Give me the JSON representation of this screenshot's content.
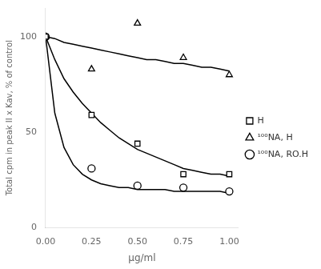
{
  "chart_data": {
    "type": "scatter",
    "xlabel": "μg/ml",
    "ylabel": "Total cpm in peak II x Kav, % of control",
    "xlim": [
      0.0,
      1.05
    ],
    "ylim": [
      0,
      115
    ],
    "xticks": [
      {
        "value": 0.0,
        "label": "0.00"
      },
      {
        "value": 0.25,
        "label": "0.25"
      },
      {
        "value": 0.5,
        "label": "0.50"
      },
      {
        "value": 0.75,
        "label": "0.75"
      },
      {
        "value": 1.0,
        "label": "1.00"
      }
    ],
    "yticks": [
      0,
      50,
      100
    ],
    "grid": false,
    "legend": "right",
    "series": [
      {
        "type": "line",
        "marker": "none",
        "line_style": "solid",
        "color": "black",
        "x": [
          0.0,
          0.05,
          0.1,
          0.15,
          0.2,
          0.25,
          0.3,
          0.35,
          0.4,
          0.45,
          0.5,
          0.55,
          0.6,
          0.65,
          0.7,
          0.75,
          0.8,
          0.85,
          0.9,
          0.95,
          1.0
        ],
        "values": [
          100,
          88,
          78,
          71,
          65,
          60,
          55,
          51,
          47,
          44,
          41,
          39,
          37,
          35,
          33,
          31,
          30,
          29,
          28,
          28,
          27
        ]
      },
      {
        "type": "line",
        "marker": "none",
        "line_style": "solid",
        "color": "black",
        "x": [
          0.0,
          0.05,
          0.1,
          0.15,
          0.2,
          0.25,
          0.3,
          0.35,
          0.4,
          0.45,
          0.5,
          0.55,
          0.6,
          0.65,
          0.7,
          0.75,
          0.8,
          0.85,
          0.9,
          0.95,
          1.0
        ],
        "values": [
          100,
          99,
          97,
          96,
          95,
          94,
          93,
          92,
          91,
          90,
          89,
          88,
          88,
          87,
          86,
          86,
          85,
          84,
          84,
          83,
          82
        ]
      },
      {
        "type": "line",
        "marker": "none",
        "line_style": "solid",
        "color": "black",
        "x": [
          0.0,
          0.05,
          0.1,
          0.15,
          0.2,
          0.25,
          0.3,
          0.35,
          0.4,
          0.45,
          0.5,
          0.55,
          0.6,
          0.65,
          0.7,
          0.75,
          0.8,
          0.85,
          0.9,
          0.95,
          1.0
        ],
        "values": [
          100,
          60,
          42,
          33,
          28,
          25,
          23,
          22,
          21,
          21,
          20,
          20,
          20,
          20,
          19,
          19,
          19,
          19,
          19,
          19,
          18
        ]
      },
      {
        "name": "H",
        "type": "scatter",
        "marker": "square",
        "color": "black",
        "x": [
          0.0,
          0.25,
          0.5,
          0.75,
          1.0
        ],
        "values": [
          100,
          59,
          44,
          28,
          28
        ]
      },
      {
        "name": "¹⁰⁰NA, H",
        "type": "scatter",
        "marker": "triangle",
        "color": "black",
        "x": [
          0.0,
          0.25,
          0.5,
          0.75,
          1.0
        ],
        "values": [
          100,
          83,
          107,
          89,
          80
        ]
      },
      {
        "name": "¹⁰⁰NA, RO.H",
        "type": "scatter",
        "marker": "circle",
        "color": "black",
        "x": [
          0.0,
          0.25,
          0.5,
          0.75,
          1.0
        ],
        "values": [
          100,
          31,
          22,
          21,
          19
        ]
      }
    ]
  }
}
